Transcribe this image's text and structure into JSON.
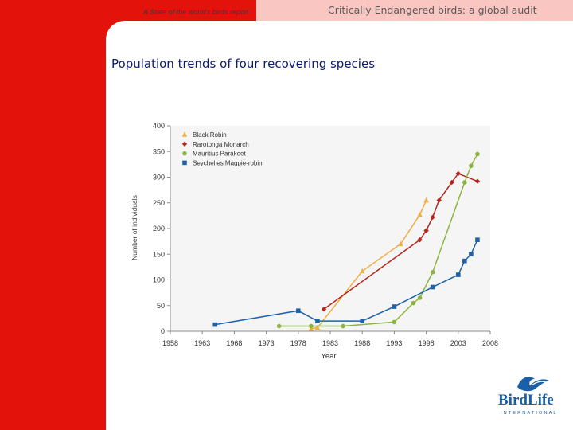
{
  "header": {
    "report_label": "A State of the world's birds report",
    "title": "Critically Endangered birds: a global audit"
  },
  "logo": {
    "name": "BirdLife",
    "subtitle": "INTERNATIONAL",
    "icon": "bird-icon",
    "color": "#1a5fa8"
  },
  "colors": {
    "brand_red": "#e3120b",
    "title_tab": "#f9c6c2",
    "chart_title": "#0a1a72"
  },
  "chart_data": {
    "type": "line",
    "title": "Population trends of four recovering species",
    "xlabel": "Year",
    "ylabel": "Number of individuals",
    "xlim": [
      1958,
      2008
    ],
    "ylim": [
      0,
      400
    ],
    "xticks": [
      1958,
      1963,
      1968,
      1973,
      1978,
      1983,
      1988,
      1993,
      1998,
      2003,
      2008
    ],
    "yticks": [
      0,
      50,
      100,
      150,
      200,
      250,
      300,
      350,
      400
    ],
    "grid": false,
    "legend_position": "top-left",
    "series": [
      {
        "name": "Black Robin",
        "color": "#f0ae45",
        "marker": "triangle",
        "points": [
          [
            1980,
            5
          ],
          [
            1981,
            7
          ],
          [
            1988,
            117
          ],
          [
            1994,
            170
          ],
          [
            1997,
            227
          ],
          [
            1998,
            255
          ]
        ]
      },
      {
        "name": "Rarotonga Monarch",
        "color": "#b5261e",
        "marker": "diamond",
        "points": [
          [
            1982,
            43
          ],
          [
            1997,
            178
          ],
          [
            1998,
            196
          ],
          [
            1999,
            222
          ],
          [
            2000,
            255
          ],
          [
            2002,
            290
          ],
          [
            2003,
            307
          ],
          [
            2006,
            292
          ]
        ]
      },
      {
        "name": "Mauritius Parakeet",
        "color": "#8db43f",
        "marker": "circle",
        "points": [
          [
            1975,
            10
          ],
          [
            1980,
            10
          ],
          [
            1985,
            10
          ],
          [
            1993,
            18
          ],
          [
            1996,
            55
          ],
          [
            1997,
            65
          ],
          [
            1999,
            115
          ],
          [
            2004,
            290
          ],
          [
            2005,
            322
          ],
          [
            2006,
            345
          ]
        ]
      },
      {
        "name": "Seychelles Magpie-robin",
        "color": "#1f62a8",
        "marker": "square",
        "points": [
          [
            1965,
            13
          ],
          [
            1978,
            40
          ],
          [
            1981,
            20
          ],
          [
            1988,
            20
          ],
          [
            1993,
            48
          ],
          [
            1999,
            86
          ],
          [
            2003,
            110
          ],
          [
            2004,
            137
          ],
          [
            2005,
            150
          ],
          [
            2006,
            178
          ]
        ]
      }
    ]
  }
}
